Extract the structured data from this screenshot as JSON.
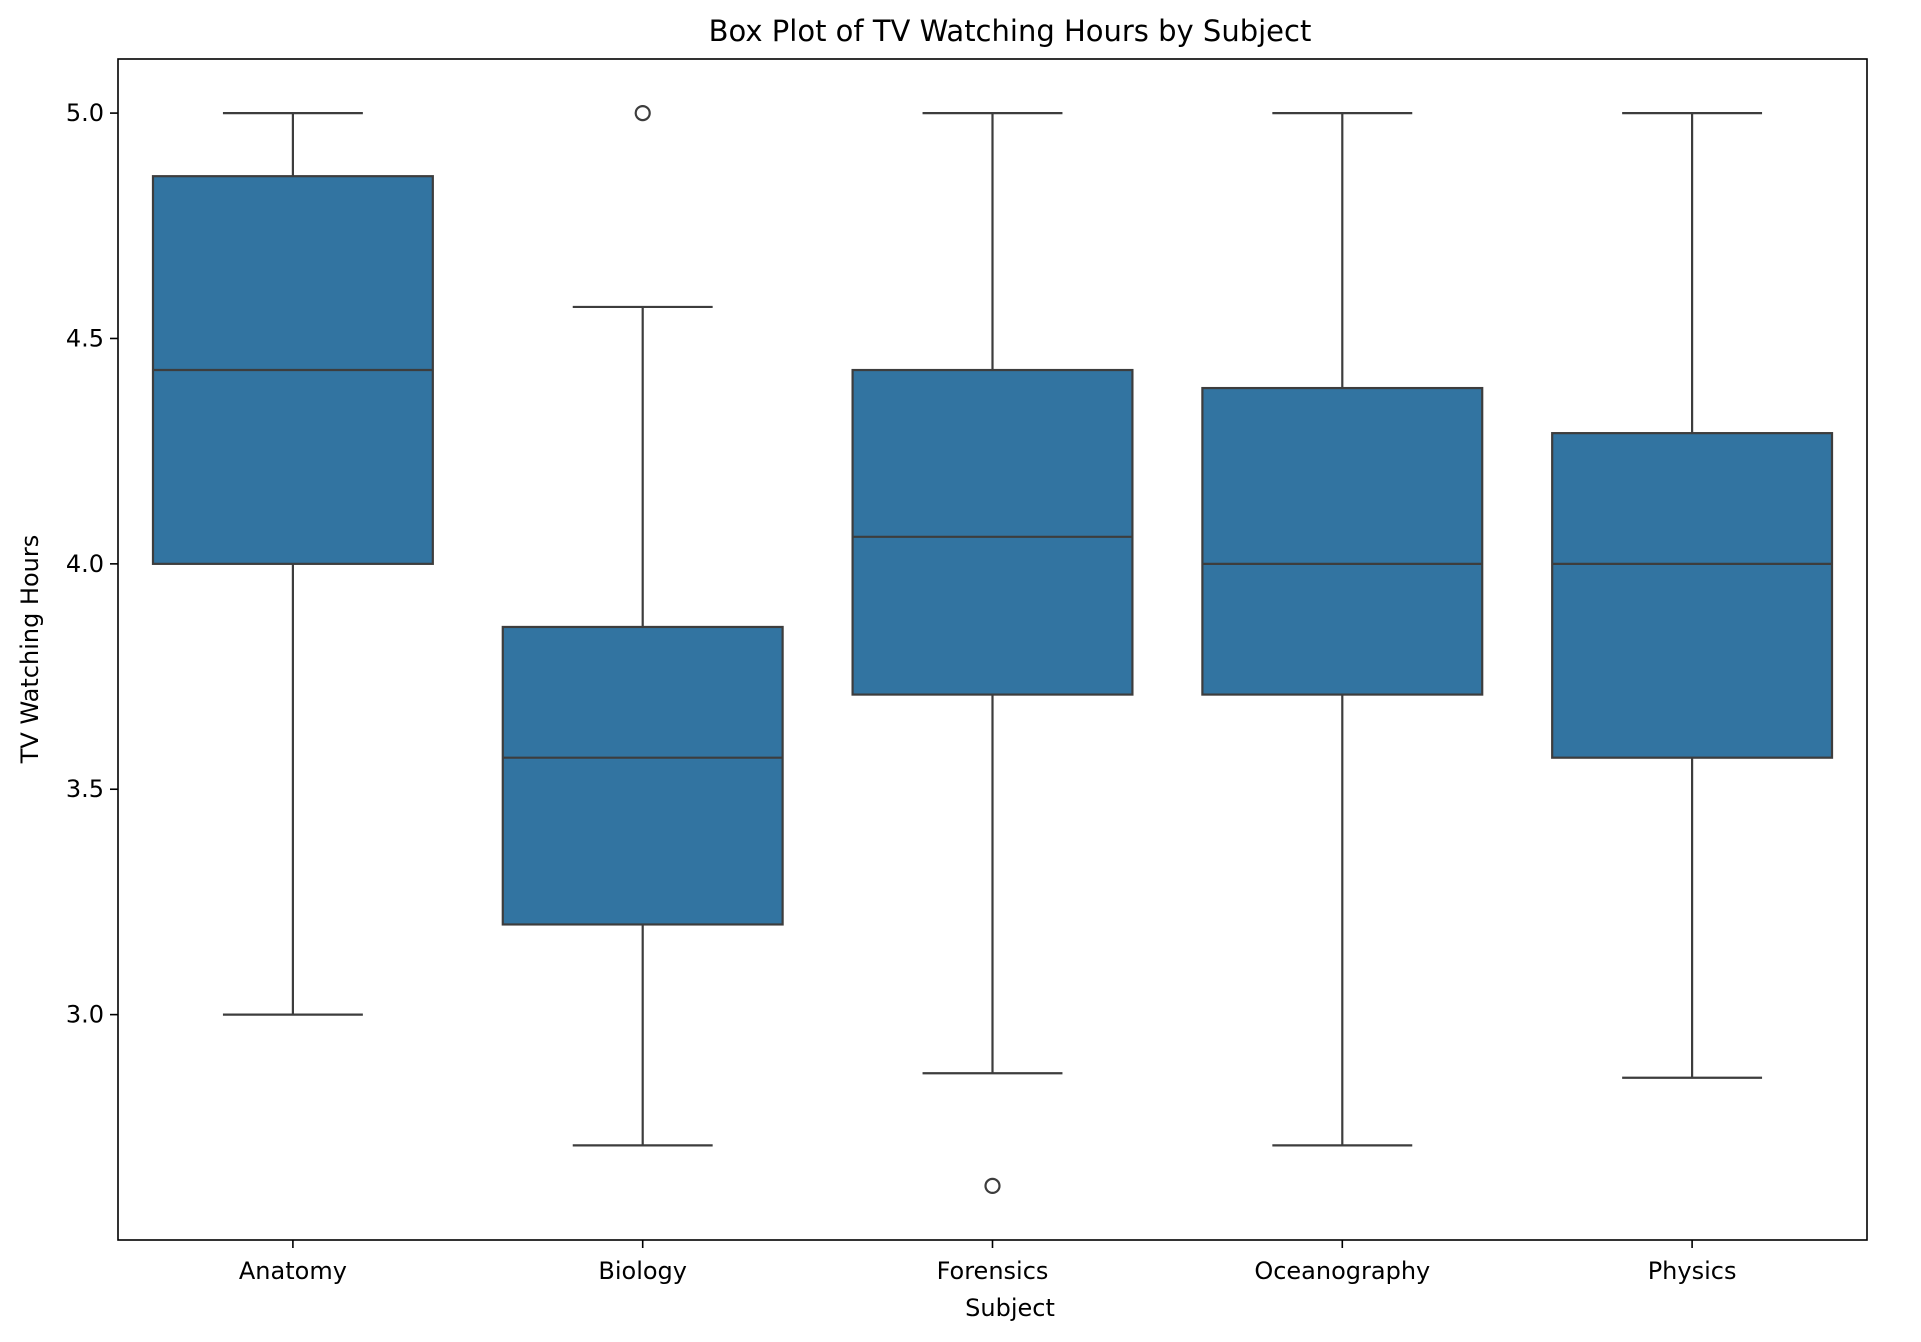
{
  "chart_data": {
    "type": "box",
    "title": "Box Plot of TV Watching Hours by Subject",
    "xlabel": "Subject",
    "ylabel": "TV Watching Hours",
    "ylim": [
      2.5,
      5.12
    ],
    "yticks": [
      {
        "value": 3.0,
        "label": "3.0"
      },
      {
        "value": 3.5,
        "label": "3.5"
      },
      {
        "value": 4.0,
        "label": "4.0"
      },
      {
        "value": 4.5,
        "label": "4.5"
      },
      {
        "value": 5.0,
        "label": "5.0"
      }
    ],
    "grid": false,
    "colors": {
      "box_fill": "#3274a1",
      "line": "#3d3d3d",
      "axis": "#000000"
    },
    "categories": [
      "Anatomy",
      "Biology",
      "Forensics",
      "Oceanography",
      "Physics"
    ],
    "boxes": [
      {
        "category": "Anatomy",
        "whisker_low": 3.0,
        "q1": 4.0,
        "median": 4.43,
        "q3": 4.86,
        "whisker_high": 5.0,
        "outliers": []
      },
      {
        "category": "Biology",
        "whisker_low": 2.71,
        "q1": 3.2,
        "median": 3.57,
        "q3": 3.86,
        "whisker_high": 4.57,
        "outliers": [
          5.0
        ]
      },
      {
        "category": "Forensics",
        "whisker_low": 2.87,
        "q1": 3.71,
        "median": 4.06,
        "q3": 4.43,
        "whisker_high": 5.0,
        "outliers": [
          2.62
        ]
      },
      {
        "category": "Oceanography",
        "whisker_low": 2.71,
        "q1": 3.71,
        "median": 4.0,
        "q3": 4.39,
        "whisker_high": 5.0,
        "outliers": []
      },
      {
        "category": "Physics",
        "whisker_low": 2.86,
        "q1": 3.57,
        "median": 4.0,
        "q3": 4.29,
        "whisker_high": 5.0,
        "outliers": []
      }
    ]
  }
}
